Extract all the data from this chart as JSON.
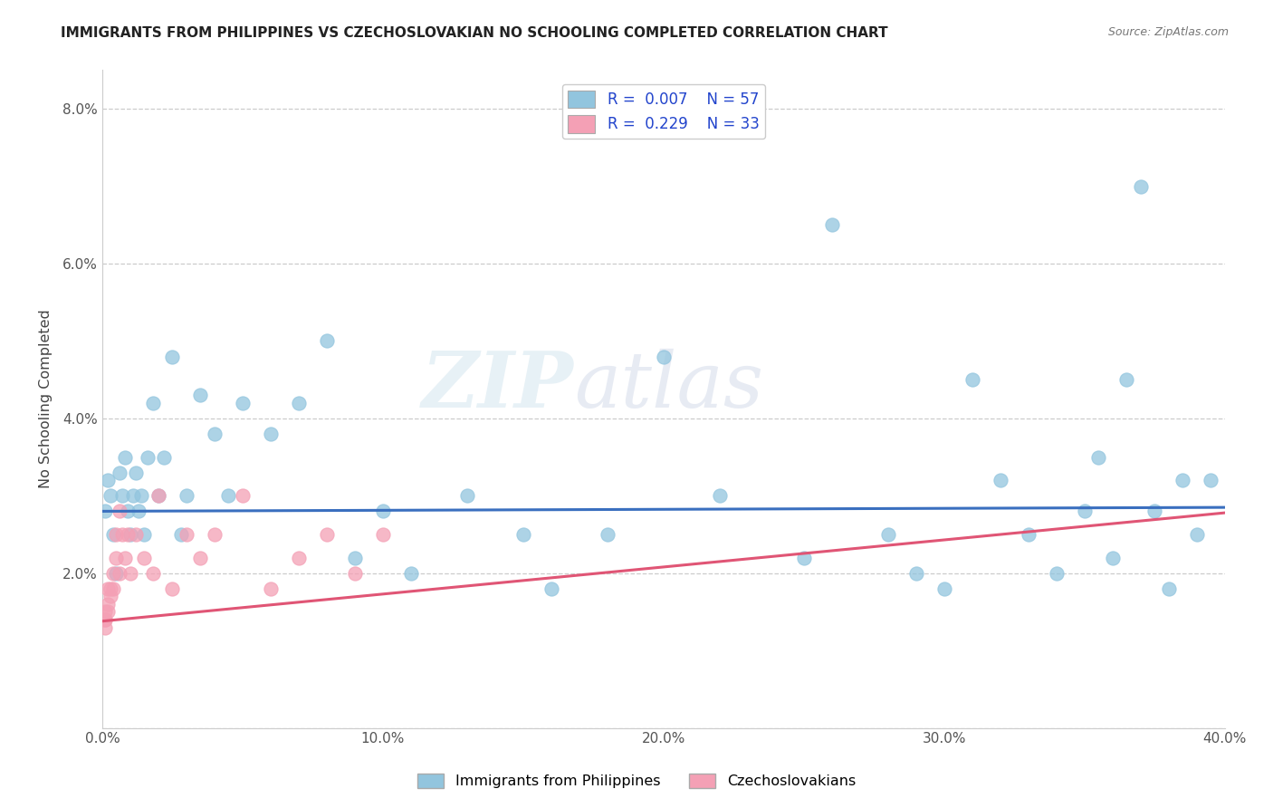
{
  "title": "IMMIGRANTS FROM PHILIPPINES VS CZECHOSLOVAKIAN NO SCHOOLING COMPLETED CORRELATION CHART",
  "source": "Source: ZipAtlas.com",
  "ylabel": "No Schooling Completed",
  "xlim": [
    0.0,
    0.4
  ],
  "ylim": [
    0.0,
    0.085
  ],
  "xticks": [
    0.0,
    0.1,
    0.2,
    0.3,
    0.4
  ],
  "xticklabels": [
    "0.0%",
    "10.0%",
    "20.0%",
    "30.0%",
    "40.0%"
  ],
  "yticks": [
    0.0,
    0.02,
    0.04,
    0.06,
    0.08
  ],
  "yticklabels": [
    "",
    "2.0%",
    "4.0%",
    "6.0%",
    "8.0%"
  ],
  "legend1_r": "0.007",
  "legend1_n": "57",
  "legend2_r": "0.229",
  "legend2_n": "33",
  "color_blue": "#92c5de",
  "color_pink": "#f4a0b5",
  "line_blue": "#3a6fbf",
  "line_pink": "#e05575",
  "watermark_zip": "ZIP",
  "watermark_atlas": "atlas",
  "phil_x": [
    0.001,
    0.002,
    0.003,
    0.004,
    0.005,
    0.006,
    0.007,
    0.008,
    0.009,
    0.01,
    0.011,
    0.012,
    0.013,
    0.014,
    0.015,
    0.016,
    0.018,
    0.02,
    0.022,
    0.025,
    0.028,
    0.03,
    0.035,
    0.04,
    0.045,
    0.05,
    0.06,
    0.07,
    0.08,
    0.09,
    0.1,
    0.11,
    0.13,
    0.15,
    0.16,
    0.18,
    0.2,
    0.22,
    0.25,
    0.26,
    0.28,
    0.29,
    0.3,
    0.31,
    0.32,
    0.33,
    0.34,
    0.35,
    0.355,
    0.36,
    0.365,
    0.37,
    0.375,
    0.38,
    0.385,
    0.39,
    0.395
  ],
  "phil_y": [
    0.028,
    0.032,
    0.03,
    0.025,
    0.02,
    0.033,
    0.03,
    0.035,
    0.028,
    0.025,
    0.03,
    0.033,
    0.028,
    0.03,
    0.025,
    0.035,
    0.042,
    0.03,
    0.035,
    0.048,
    0.025,
    0.03,
    0.043,
    0.038,
    0.03,
    0.042,
    0.038,
    0.042,
    0.05,
    0.022,
    0.028,
    0.02,
    0.03,
    0.025,
    0.018,
    0.025,
    0.048,
    0.03,
    0.022,
    0.065,
    0.025,
    0.02,
    0.018,
    0.045,
    0.032,
    0.025,
    0.02,
    0.028,
    0.035,
    0.022,
    0.045,
    0.07,
    0.028,
    0.018,
    0.032,
    0.025,
    0.032
  ],
  "czech_x": [
    0.001,
    0.001,
    0.001,
    0.001,
    0.002,
    0.002,
    0.002,
    0.003,
    0.003,
    0.004,
    0.004,
    0.005,
    0.005,
    0.006,
    0.006,
    0.007,
    0.008,
    0.009,
    0.01,
    0.012,
    0.015,
    0.018,
    0.02,
    0.025,
    0.03,
    0.035,
    0.04,
    0.05,
    0.06,
    0.07,
    0.08,
    0.09,
    0.1
  ],
  "czech_y": [
    0.015,
    0.014,
    0.014,
    0.013,
    0.015,
    0.016,
    0.018,
    0.017,
    0.018,
    0.02,
    0.018,
    0.025,
    0.022,
    0.02,
    0.028,
    0.025,
    0.022,
    0.025,
    0.02,
    0.025,
    0.022,
    0.02,
    0.03,
    0.018,
    0.025,
    0.022,
    0.025,
    0.03,
    0.018,
    0.022,
    0.025,
    0.02,
    0.025
  ],
  "phil_line_x": [
    0.0,
    0.4
  ],
  "phil_line_y": [
    0.028,
    0.0285
  ],
  "czech_line_x": [
    0.0,
    0.4
  ],
  "czech_line_y": [
    0.0138,
    0.0278
  ]
}
